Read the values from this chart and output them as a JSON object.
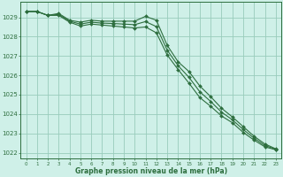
{
  "title": "Graphe pression niveau de la mer (hPa)",
  "bg_color": "#cff0e8",
  "grid_color": "#99ccbb",
  "line_color": "#2d6e3e",
  "marker_color": "#2d6e3e",
  "xlim": [
    -0.5,
    23.5
  ],
  "ylim": [
    1021.7,
    1029.8
  ],
  "yticks": [
    1022,
    1023,
    1024,
    1025,
    1026,
    1027,
    1028,
    1029
  ],
  "xticks": [
    0,
    1,
    2,
    3,
    4,
    5,
    6,
    7,
    8,
    9,
    10,
    11,
    12,
    13,
    14,
    15,
    16,
    17,
    18,
    19,
    20,
    21,
    22,
    23
  ],
  "series": [
    [
      1029.3,
      1029.3,
      1029.1,
      1029.2,
      1028.85,
      1028.75,
      1028.85,
      1028.8,
      1028.8,
      1028.8,
      1028.8,
      1029.05,
      1028.85,
      1027.55,
      1026.7,
      1026.2,
      1025.45,
      1024.9,
      1024.3,
      1023.85,
      1023.35,
      1022.85,
      1022.45,
      1022.2
    ],
    [
      1029.3,
      1029.3,
      1029.1,
      1029.1,
      1028.75,
      1028.55,
      1028.65,
      1028.6,
      1028.55,
      1028.5,
      1028.45,
      1028.5,
      1028.2,
      1027.05,
      1026.3,
      1025.6,
      1024.85,
      1024.4,
      1023.9,
      1023.55,
      1023.05,
      1022.65,
      1022.3,
      1022.15
    ],
    [
      1029.3,
      1029.3,
      1029.1,
      1029.15,
      1028.8,
      1028.65,
      1028.75,
      1028.7,
      1028.68,
      1028.65,
      1028.62,
      1028.78,
      1028.52,
      1027.3,
      1026.5,
      1025.9,
      1025.15,
      1024.65,
      1024.1,
      1023.7,
      1023.2,
      1022.75,
      1022.37,
      1022.18
    ]
  ]
}
